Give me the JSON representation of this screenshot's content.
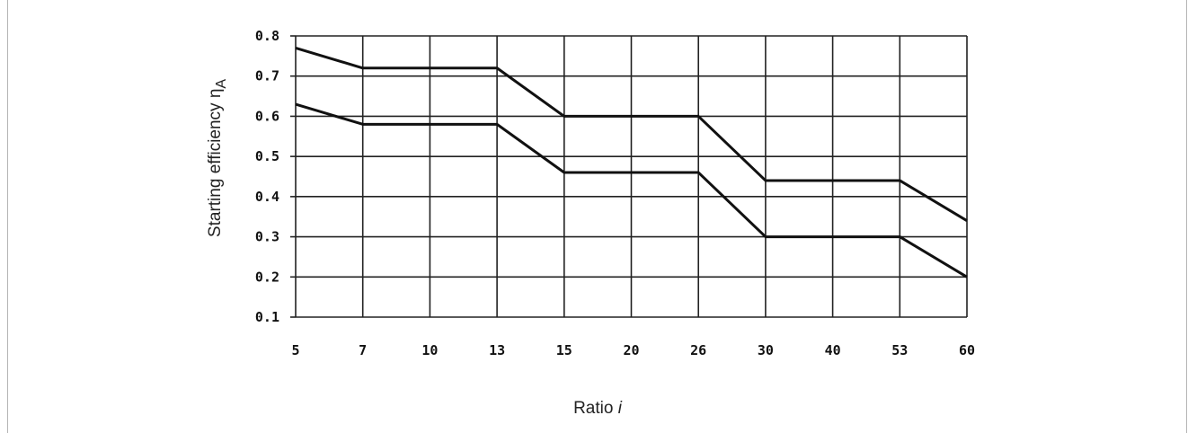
{
  "chart_data": {
    "type": "line",
    "xlabel": "Ratio ",
    "xlabel_italic": "i",
    "ylabel": "Starting efficiency η",
    "ylabel_sub": "A",
    "categories": [
      "5",
      "7",
      "10",
      "13",
      "15",
      "20",
      "26",
      "30",
      "40",
      "53",
      "60"
    ],
    "y_ticks": [
      "0.8",
      "0.7",
      "0.6",
      "0.5",
      "0.4",
      "0.3",
      "0.2",
      "0.1"
    ],
    "ylim": [
      0.1,
      0.8
    ],
    "grid": true,
    "series": [
      {
        "values": [
          0.77,
          0.72,
          0.72,
          0.72,
          0.6,
          0.6,
          0.6,
          0.44,
          0.44,
          0.44,
          0.34
        ]
      },
      {
        "values": [
          0.63,
          0.58,
          0.58,
          0.58,
          0.46,
          0.46,
          0.46,
          0.3,
          0.3,
          0.3,
          0.2
        ]
      }
    ],
    "colors": {
      "line": "#111111",
      "grid": "#222222"
    }
  }
}
